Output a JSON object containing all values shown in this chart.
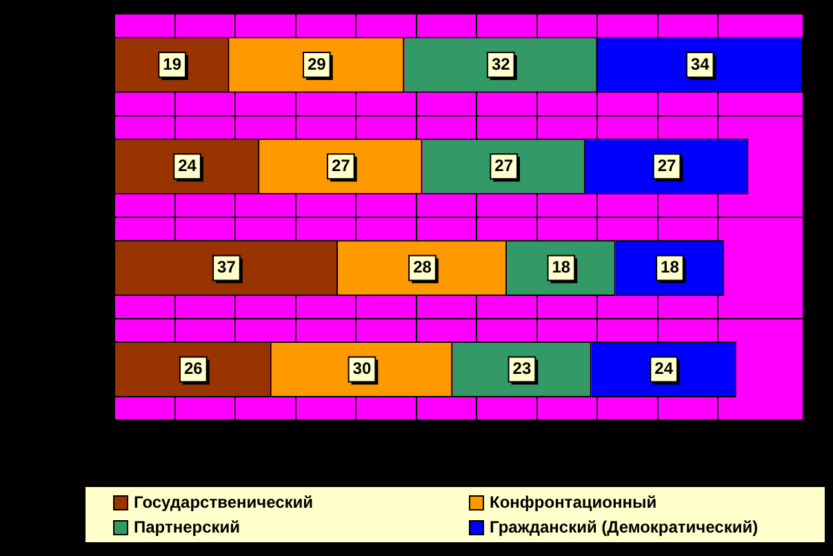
{
  "chart_data": {
    "type": "bar",
    "orientation": "horizontal",
    "stacked": true,
    "categories": [
      null,
      null,
      null,
      null
    ],
    "series": [
      {
        "name": "Государственический",
        "color": "#993300",
        "values": [
          19,
          24,
          37,
          26
        ]
      },
      {
        "name": "Конфронтационный",
        "color": "#ff9900",
        "values": [
          29,
          27,
          28,
          30
        ]
      },
      {
        "name": "Партнерский",
        "color": "#339966",
        "values": [
          32,
          27,
          18,
          23
        ]
      },
      {
        "name": "Гражданский (Демократический)",
        "color": "#0000ff",
        "values": [
          34,
          27,
          18,
          24
        ]
      }
    ],
    "xlim": [
      0,
      114
    ],
    "xticks": [
      {
        "value": 0,
        "label": null
      },
      {
        "value": 10,
        "label": null
      },
      {
        "value": 20,
        "label": null
      },
      {
        "value": 30,
        "label": null
      },
      {
        "value": 40,
        "label": null
      },
      {
        "value": 50,
        "label": null
      },
      {
        "value": 60,
        "label": null
      },
      {
        "value": 70,
        "label": null
      },
      {
        "value": 80,
        "label": null
      },
      {
        "value": 90,
        "label": null
      },
      {
        "value": 100,
        "label": null
      }
    ],
    "grid": true,
    "data_labels": true,
    "legend": "bottom"
  }
}
